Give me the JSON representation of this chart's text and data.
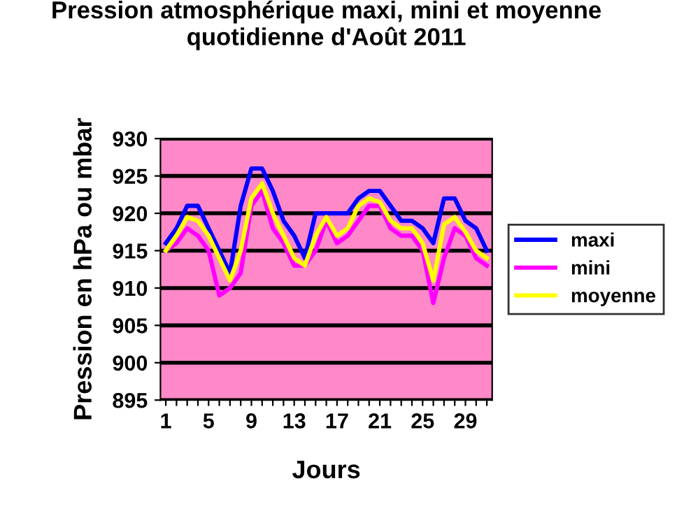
{
  "chart_data": {
    "type": "line",
    "title": "Pression atmosphérique maxi, mini et moyenne quotidienne d'Août 2011",
    "xlabel": "Jours",
    "ylabel": "Pression en hPa ou mbar",
    "categories": [
      "1",
      null,
      null,
      null,
      "5",
      null,
      null,
      null,
      "9",
      null,
      null,
      null,
      "13",
      null,
      null,
      null,
      "17",
      null,
      null,
      null,
      "21",
      null,
      null,
      null,
      "25",
      null,
      null,
      null,
      "29",
      null,
      null
    ],
    "series": [
      {
        "name": "maxi",
        "color": "#0000ff",
        "values": [
          916,
          918,
          921,
          921,
          918,
          915,
          912,
          921,
          926,
          926,
          923,
          919,
          917,
          914,
          920,
          920,
          920,
          920,
          922,
          923,
          923,
          921,
          919,
          919,
          918,
          916,
          922,
          922,
          919,
          918,
          915
        ]
      },
      {
        "name": "mini",
        "color": "#ff00ff",
        "values": [
          915,
          916,
          918,
          917,
          915,
          909,
          910,
          912,
          921,
          923,
          918,
          916,
          913,
          913,
          915,
          919,
          916,
          917,
          919,
          921,
          921,
          918,
          917,
          917,
          915,
          908,
          914,
          918,
          917,
          914,
          913
        ]
      },
      {
        "name": "moyenne",
        "color": "#ffff00",
        "values": [
          915,
          917,
          919.5,
          919,
          917,
          914,
          911,
          915,
          922,
          924,
          920,
          917,
          914,
          913,
          917,
          919.5,
          917,
          918,
          921,
          922,
          921.5,
          919,
          918,
          918,
          916,
          911,
          918.5,
          919.5,
          917.5,
          915,
          914
        ]
      }
    ],
    "ylim": [
      895,
      930
    ],
    "yticks": [
      895,
      900,
      905,
      910,
      915,
      920,
      925,
      930
    ],
    "grid": "y",
    "legend": "right",
    "marker": "none",
    "line_style": "solid"
  }
}
